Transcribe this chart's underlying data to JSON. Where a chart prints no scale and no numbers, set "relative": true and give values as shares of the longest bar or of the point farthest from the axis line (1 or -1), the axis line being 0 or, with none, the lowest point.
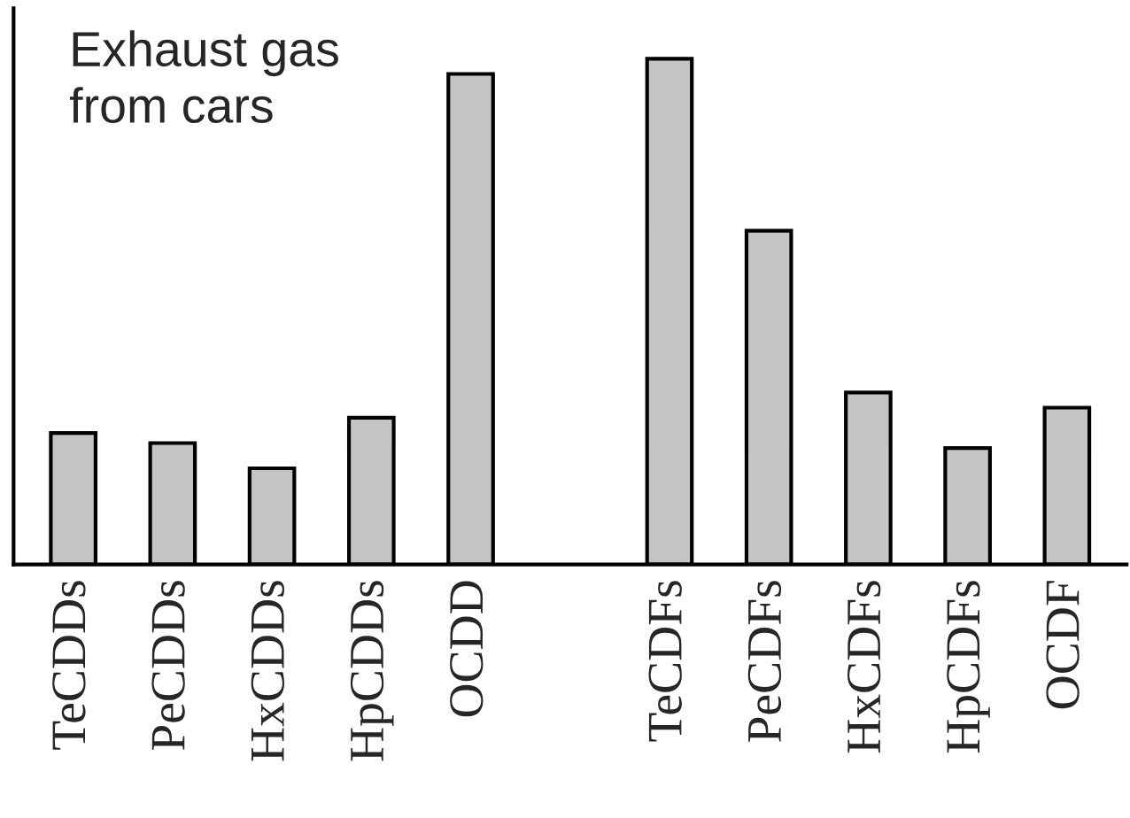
{
  "chart_data": {
    "type": "bar",
    "relative": true,
    "categories": [
      "TeCDDs",
      "PeCDDs",
      "HxCDDs",
      "HpCDDs",
      "OCDD",
      null,
      "TeCDFs",
      "PeCDFs",
      "HxCDFs",
      "HpCDFs",
      "OCDF"
    ],
    "values": [
      0.26,
      0.24,
      0.19,
      0.29,
      0.97,
      null,
      1,
      0.66,
      0.34,
      0.23,
      0.31
    ],
    "color": "#c4c4c4",
    "annotations": [
      "Exhaust gas from cars"
    ]
  }
}
